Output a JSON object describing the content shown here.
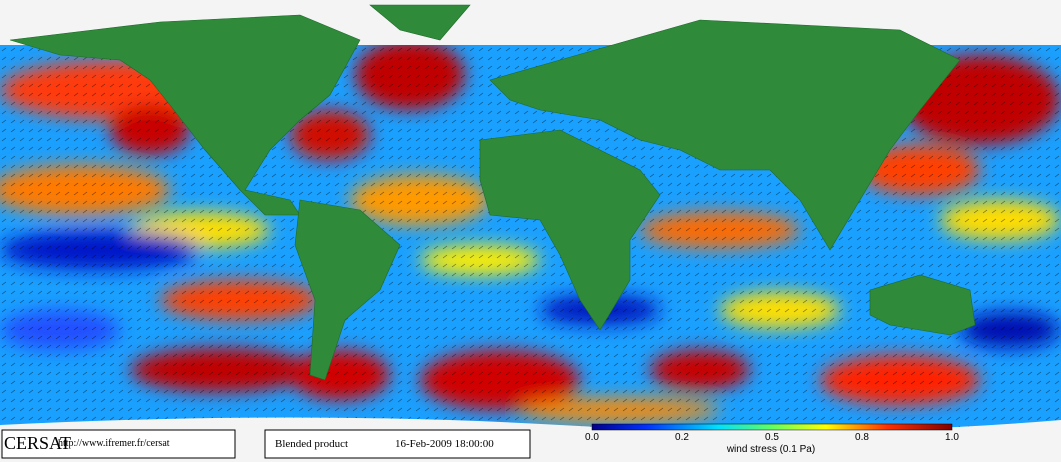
{
  "footer": {
    "logo": "CERSAT",
    "url": "http://www.ifremer.fr/cersat",
    "product": "Blended product",
    "date": "16-Feb-2009 18:00:00"
  },
  "colorbar": {
    "ticks": [
      "0.0",
      "0.2",
      "0.5",
      "0.8",
      "1.0"
    ],
    "label": "wind stress (0.1 Pa)"
  }
}
